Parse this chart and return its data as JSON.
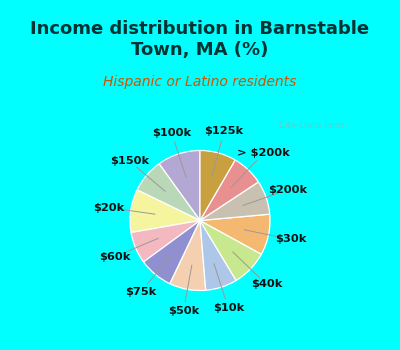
{
  "title": "Income distribution in Barnstable\nTown, MA (%)",
  "subtitle": "Hispanic or Latino residents",
  "slices": [
    {
      "label": "$100k",
      "value": 9.5,
      "color": "#b3a8d4"
    },
    {
      "label": "$150k",
      "value": 7.5,
      "color": "#b8d8b8"
    },
    {
      "label": "$20k",
      "value": 9.5,
      "color": "#f5f5a0"
    },
    {
      "label": "$60k",
      "value": 7.0,
      "color": "#f4b8c0"
    },
    {
      "label": "$75k",
      "value": 7.5,
      "color": "#9090d0"
    },
    {
      "label": "$50k",
      "value": 8.0,
      "color": "#f5d0b0"
    },
    {
      "label": "$10k",
      "value": 7.0,
      "color": "#aec6e8"
    },
    {
      "label": "$40k",
      "value": 8.0,
      "color": "#c8e890"
    },
    {
      "label": "$30k",
      "value": 9.0,
      "color": "#f5b870"
    },
    {
      "label": "$200k",
      "value": 7.5,
      "color": "#c8c0b0"
    },
    {
      "label": "> $200k",
      "value": 7.0,
      "color": "#e89090"
    },
    {
      "label": "$125k",
      "value": 8.0,
      "color": "#c8a040"
    }
  ],
  "title_fontsize": 13,
  "subtitle_fontsize": 10,
  "label_fontsize": 8.2,
  "bg_top": "#00FFFF",
  "bg_chart": "#dff0df",
  "watermark": "  City-Data.com"
}
